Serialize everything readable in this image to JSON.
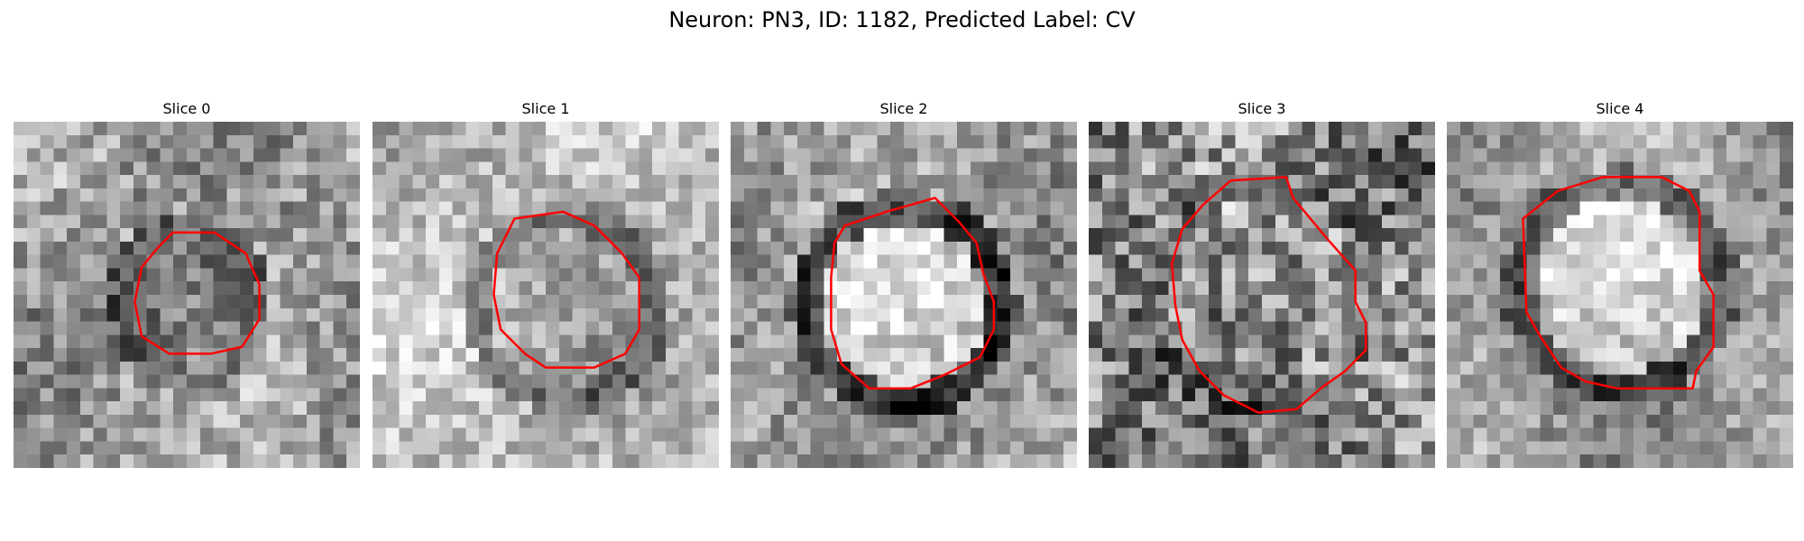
{
  "figure": {
    "title": "Neuron: PN3, ID: 1182, Predicted Label: CV"
  },
  "panels": [
    {
      "title": "Slice 0"
    },
    {
      "title": "Slice 1"
    },
    {
      "title": "Slice 2"
    },
    {
      "title": "Slice 3"
    },
    {
      "title": "Slice 4"
    }
  ],
  "colors": {
    "contour": "#ff0000",
    "background": "#ffffff"
  },
  "image_content": "grayscale electron-microscopy crops, one per slice, each with a red segmentation contour outlining a vesicle-like structure"
}
